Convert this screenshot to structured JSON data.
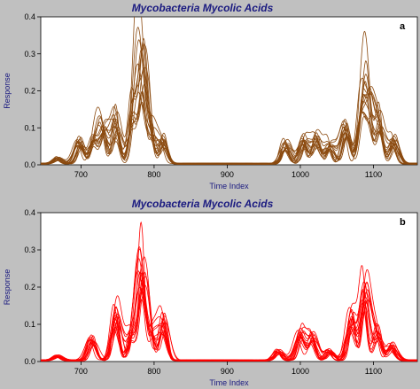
{
  "chart_data": [
    {
      "type": "line",
      "panel_label": "a",
      "title": "Mycobacteria Mycolic Acids",
      "xlabel": "Time Index",
      "ylabel": "Response",
      "xlim": [
        645,
        1160
      ],
      "ylim": [
        0,
        0.4
      ],
      "xticks": [
        700,
        800,
        900,
        1000,
        1100
      ],
      "yticks": [
        0,
        0.1,
        0.2,
        0.3,
        0.4
      ],
      "ytick_labels": [
        "0.0",
        "0.1",
        "0.2",
        "0.3",
        "0.4"
      ],
      "line_color": "#8b4a0f",
      "grid": false,
      "peaks": [
        {
          "x": 668,
          "values": [
            0.012,
            0.015,
            0.01,
            0.018,
            0.014,
            0.009,
            0.016,
            0.011,
            0.02,
            0.013,
            0.01,
            0.017,
            0.012,
            0.015,
            0.011,
            0.014
          ]
        },
        {
          "x": 698,
          "values": [
            0.075,
            0.06,
            0.05,
            0.07,
            0.045,
            0.055,
            0.065,
            0.04,
            0.052,
            0.06,
            0.048,
            0.058,
            0.042,
            0.066,
            0.05,
            0.062
          ]
        },
        {
          "x": 718,
          "values": [
            0.08,
            0.06,
            0.055,
            0.07,
            0.05,
            0.065,
            0.045,
            0.058,
            0.062,
            0.052,
            0.068,
            0.057,
            0.049,
            0.061,
            0.054,
            0.07
          ]
        },
        {
          "x": 730,
          "values": [
            0.1,
            0.085,
            0.08,
            0.095,
            0.07,
            0.09,
            0.075,
            0.082,
            0.088,
            0.078,
            0.092,
            0.081,
            0.073,
            0.087,
            0.079,
            0.094
          ]
        },
        {
          "x": 748,
          "values": [
            0.16,
            0.12,
            0.08,
            0.14,
            0.06,
            0.1,
            0.13,
            0.09,
            0.11,
            0.07,
            0.15,
            0.1,
            0.085,
            0.12,
            0.095,
            0.105
          ]
        },
        {
          "x": 772,
          "values": [
            0.2,
            0.13,
            0.09,
            0.19,
            0.08,
            0.15,
            0.17,
            0.11,
            0.14,
            0.1,
            0.18,
            0.12,
            0.09,
            0.16,
            0.11,
            0.13
          ]
        },
        {
          "x": 783,
          "values": [
            0.36,
            0.28,
            0.18,
            0.3,
            0.14,
            0.22,
            0.26,
            0.16,
            0.24,
            0.2,
            0.27,
            0.19,
            0.15,
            0.25,
            0.17,
            0.21
          ]
        },
        {
          "x": 795,
          "values": [
            0.12,
            0.09,
            0.07,
            0.11,
            0.06,
            0.08,
            0.1,
            0.065,
            0.085,
            0.075,
            0.105,
            0.08,
            0.06,
            0.095,
            0.07,
            0.09
          ]
        },
        {
          "x": 812,
          "values": [
            0.08,
            0.06,
            0.05,
            0.07,
            0.04,
            0.065,
            0.055,
            0.045,
            0.06,
            0.05,
            0.075,
            0.058,
            0.048,
            0.063,
            0.052,
            0.067
          ]
        },
        {
          "x": 980,
          "values": [
            0.07,
            0.05,
            0.04,
            0.06,
            0.035,
            0.055,
            0.045,
            0.038,
            0.052,
            0.042,
            0.065,
            0.048,
            0.036,
            0.058,
            0.044,
            0.05
          ]
        },
        {
          "x": 1005,
          "values": [
            0.08,
            0.06,
            0.05,
            0.07,
            0.04,
            0.065,
            0.055,
            0.045,
            0.06,
            0.05,
            0.075,
            0.058,
            0.048,
            0.063,
            0.052,
            0.067
          ]
        },
        {
          "x": 1022,
          "values": [
            0.09,
            0.07,
            0.05,
            0.08,
            0.045,
            0.06,
            0.075,
            0.055,
            0.065,
            0.05,
            0.085,
            0.062,
            0.048,
            0.07,
            0.058,
            0.068
          ]
        },
        {
          "x": 1040,
          "values": [
            0.06,
            0.05,
            0.04,
            0.055,
            0.035,
            0.045,
            0.05,
            0.038,
            0.048,
            0.042,
            0.058,
            0.046,
            0.036,
            0.052,
            0.044,
            0.05
          ]
        },
        {
          "x": 1062,
          "values": [
            0.12,
            0.1,
            0.08,
            0.11,
            0.07,
            0.09,
            0.105,
            0.075,
            0.095,
            0.085,
            0.115,
            0.092,
            0.072,
            0.1,
            0.082,
            0.098
          ]
        },
        {
          "x": 1085,
          "values": [
            0.2,
            0.15,
            0.12,
            0.18,
            0.1,
            0.14,
            0.16,
            0.11,
            0.13,
            0.12,
            0.17,
            0.13,
            0.1,
            0.15,
            0.11,
            0.14
          ]
        },
        {
          "x": 1093,
          "values": [
            0.17,
            0.14,
            0.1,
            0.16,
            0.09,
            0.13,
            0.15,
            0.1,
            0.12,
            0.11,
            0.16,
            0.12,
            0.09,
            0.14,
            0.1,
            0.13
          ]
        },
        {
          "x": 1108,
          "values": [
            0.16,
            0.12,
            0.09,
            0.14,
            0.08,
            0.11,
            0.13,
            0.09,
            0.1,
            0.085,
            0.135,
            0.1,
            0.08,
            0.12,
            0.09,
            0.11
          ]
        },
        {
          "x": 1128,
          "values": [
            0.08,
            0.06,
            0.05,
            0.07,
            0.04,
            0.055,
            0.065,
            0.045,
            0.06,
            0.05,
            0.075,
            0.058,
            0.048,
            0.063,
            0.052,
            0.067
          ]
        }
      ]
    },
    {
      "type": "line",
      "panel_label": "b",
      "title": "Mycobacteria Mycolic Acids",
      "xlabel": "Time Index",
      "ylabel": "Response",
      "xlim": [
        645,
        1160
      ],
      "ylim": [
        0,
        0.4
      ],
      "xticks": [
        700,
        800,
        900,
        1000,
        1100
      ],
      "yticks": [
        0,
        0.1,
        0.2,
        0.3,
        0.4
      ],
      "ytick_labels": [
        "0.0",
        "0.1",
        "0.2",
        "0.3",
        "0.4"
      ],
      "line_color": "#ff0000",
      "grid": false,
      "peaks": [
        {
          "x": 668,
          "values": [
            0.01,
            0.012,
            0.009,
            0.014,
            0.011,
            0.008,
            0.013,
            0.01,
            0.015,
            0.012,
            0.009,
            0.014,
            0.011,
            0.013,
            0.01,
            0.012
          ]
        },
        {
          "x": 715,
          "values": [
            0.07,
            0.06,
            0.05,
            0.065,
            0.045,
            0.055,
            0.058,
            0.042,
            0.052,
            0.048,
            0.062,
            0.05,
            0.04,
            0.056,
            0.046,
            0.053
          ]
        },
        {
          "x": 748,
          "values": [
            0.17,
            0.14,
            0.1,
            0.15,
            0.09,
            0.12,
            0.13,
            0.095,
            0.11,
            0.1,
            0.145,
            0.115,
            0.085,
            0.125,
            0.1,
            0.12
          ]
        },
        {
          "x": 770,
          "values": [
            0.09,
            0.07,
            0.06,
            0.08,
            0.05,
            0.065,
            0.075,
            0.055,
            0.07,
            0.06,
            0.085,
            0.068,
            0.052,
            0.072,
            0.058,
            0.066
          ]
        },
        {
          "x": 783,
          "values": [
            0.36,
            0.28,
            0.2,
            0.25,
            0.16,
            0.22,
            0.24,
            0.18,
            0.21,
            0.19,
            0.27,
            0.2,
            0.15,
            0.23,
            0.17,
            0.21
          ]
        },
        {
          "x": 795,
          "values": [
            0.08,
            0.07,
            0.06,
            0.075,
            0.05,
            0.065,
            0.07,
            0.055,
            0.065,
            0.06,
            0.078,
            0.062,
            0.05,
            0.068,
            0.056,
            0.064
          ]
        },
        {
          "x": 812,
          "values": [
            0.14,
            0.12,
            0.08,
            0.13,
            0.07,
            0.1,
            0.11,
            0.075,
            0.095,
            0.085,
            0.125,
            0.1,
            0.07,
            0.105,
            0.08,
            0.1
          ]
        },
        {
          "x": 970,
          "values": [
            0.03,
            0.025,
            0.02,
            0.028,
            0.018,
            0.022,
            0.026,
            0.019,
            0.024,
            0.021,
            0.029,
            0.023,
            0.017,
            0.025,
            0.02,
            0.023
          ]
        },
        {
          "x": 1000,
          "values": [
            0.09,
            0.07,
            0.06,
            0.08,
            0.05,
            0.065,
            0.075,
            0.055,
            0.07,
            0.06,
            0.085,
            0.068,
            0.052,
            0.072,
            0.058,
            0.066
          ]
        },
        {
          "x": 1016,
          "values": [
            0.08,
            0.065,
            0.05,
            0.075,
            0.045,
            0.06,
            0.07,
            0.05,
            0.062,
            0.055,
            0.078,
            0.06,
            0.048,
            0.068,
            0.052,
            0.06
          ]
        },
        {
          "x": 1040,
          "values": [
            0.03,
            0.025,
            0.02,
            0.028,
            0.018,
            0.022,
            0.026,
            0.019,
            0.024,
            0.021,
            0.029,
            0.023,
            0.017,
            0.025,
            0.02,
            0.023
          ]
        },
        {
          "x": 1070,
          "values": [
            0.15,
            0.12,
            0.09,
            0.14,
            0.08,
            0.11,
            0.13,
            0.09,
            0.1,
            0.095,
            0.135,
            0.105,
            0.08,
            0.12,
            0.09,
            0.11
          ]
        },
        {
          "x": 1088,
          "values": [
            0.23,
            0.2,
            0.16,
            0.21,
            0.14,
            0.18,
            0.19,
            0.15,
            0.17,
            0.16,
            0.22,
            0.17,
            0.13,
            0.19,
            0.15,
            0.18
          ]
        },
        {
          "x": 1105,
          "values": [
            0.1,
            0.08,
            0.06,
            0.09,
            0.05,
            0.07,
            0.085,
            0.06,
            0.075,
            0.065,
            0.095,
            0.07,
            0.055,
            0.08,
            0.06,
            0.07
          ]
        },
        {
          "x": 1125,
          "values": [
            0.05,
            0.04,
            0.03,
            0.045,
            0.025,
            0.035,
            0.042,
            0.03,
            0.038,
            0.033,
            0.048,
            0.036,
            0.028,
            0.04,
            0.031,
            0.037
          ]
        }
      ]
    }
  ]
}
